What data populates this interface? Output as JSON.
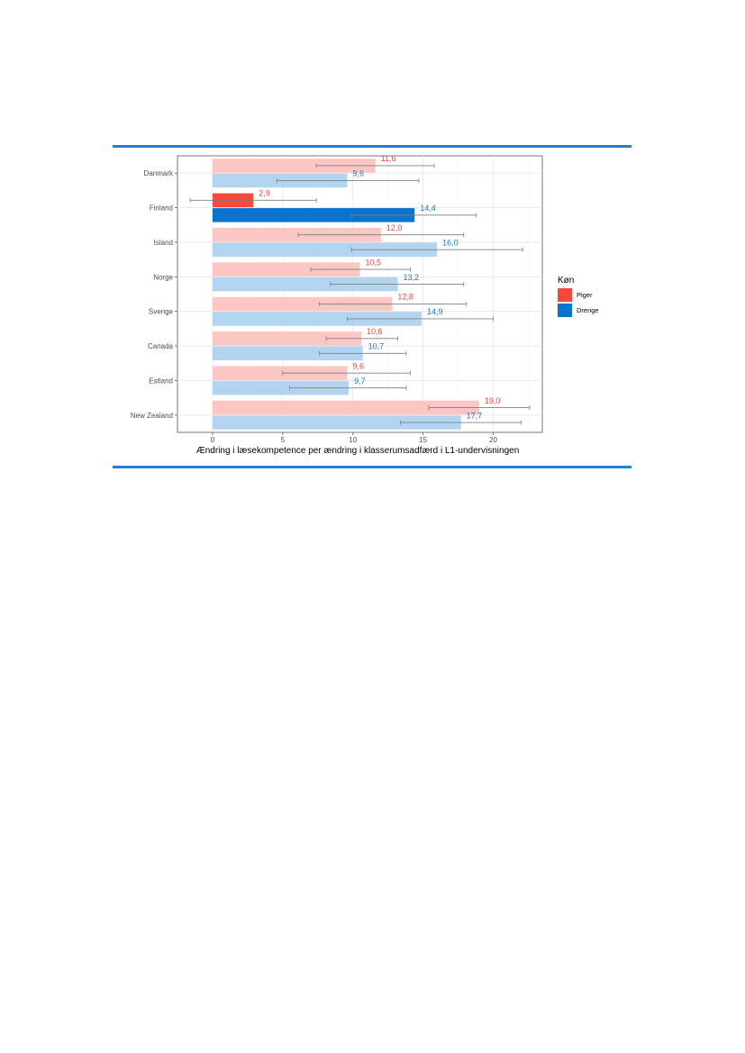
{
  "colors": {
    "piger": "#f8483c",
    "drenge": "#0a73cc",
    "piger_light": "#fbc6c3",
    "drenge_light": "#b3d4f0",
    "piger_text": "#e8473c",
    "drenge_text": "#1a78c2",
    "rule": "#1f7ed6"
  },
  "chart_data": {
    "type": "bar",
    "orientation": "horizontal",
    "xlabel": "Ændring i læsekompetence per ændring i klasserumsadfærd i L1-undervisningen",
    "ylabel": "",
    "xlim": [
      -2.5,
      23.5
    ],
    "xticks": [
      "0",
      "5",
      "10",
      "15",
      "20"
    ],
    "grid": true,
    "legend": {
      "title": "Køn",
      "position": "right"
    },
    "categories": [
      "Danmark",
      "Finland",
      "Island",
      "Norge",
      "Sverige",
      "Canada",
      "Estland",
      "New Zealand"
    ],
    "highlight_category": "Finland",
    "series": [
      {
        "name": "Piger",
        "values": [
          11.6,
          2.9,
          12.0,
          10.5,
          12.8,
          10.6,
          9.6,
          19.0
        ],
        "labels": [
          "11,6",
          "2,9",
          "12,0",
          "10,5",
          "12,8",
          "10,6",
          "9,6",
          "19,0"
        ],
        "ci_low": [
          7.4,
          -1.6,
          6.1,
          7.0,
          7.6,
          8.1,
          5.0,
          15.4
        ],
        "ci_high": [
          15.8,
          7.4,
          17.9,
          14.1,
          18.1,
          13.2,
          14.1,
          22.6
        ]
      },
      {
        "name": "Drenge",
        "values": [
          9.6,
          14.4,
          16.0,
          13.2,
          14.9,
          10.7,
          9.7,
          17.7
        ],
        "labels": [
          "9,6",
          "14,4",
          "16,0",
          "13,2",
          "14,9",
          "10,7",
          "9,7",
          "17,7"
        ],
        "ci_low": [
          4.6,
          9.9,
          9.9,
          8.4,
          9.6,
          7.6,
          5.5,
          13.4
        ],
        "ci_high": [
          14.7,
          18.8,
          22.1,
          17.9,
          20.0,
          13.8,
          13.8,
          22.0
        ]
      }
    ]
  }
}
